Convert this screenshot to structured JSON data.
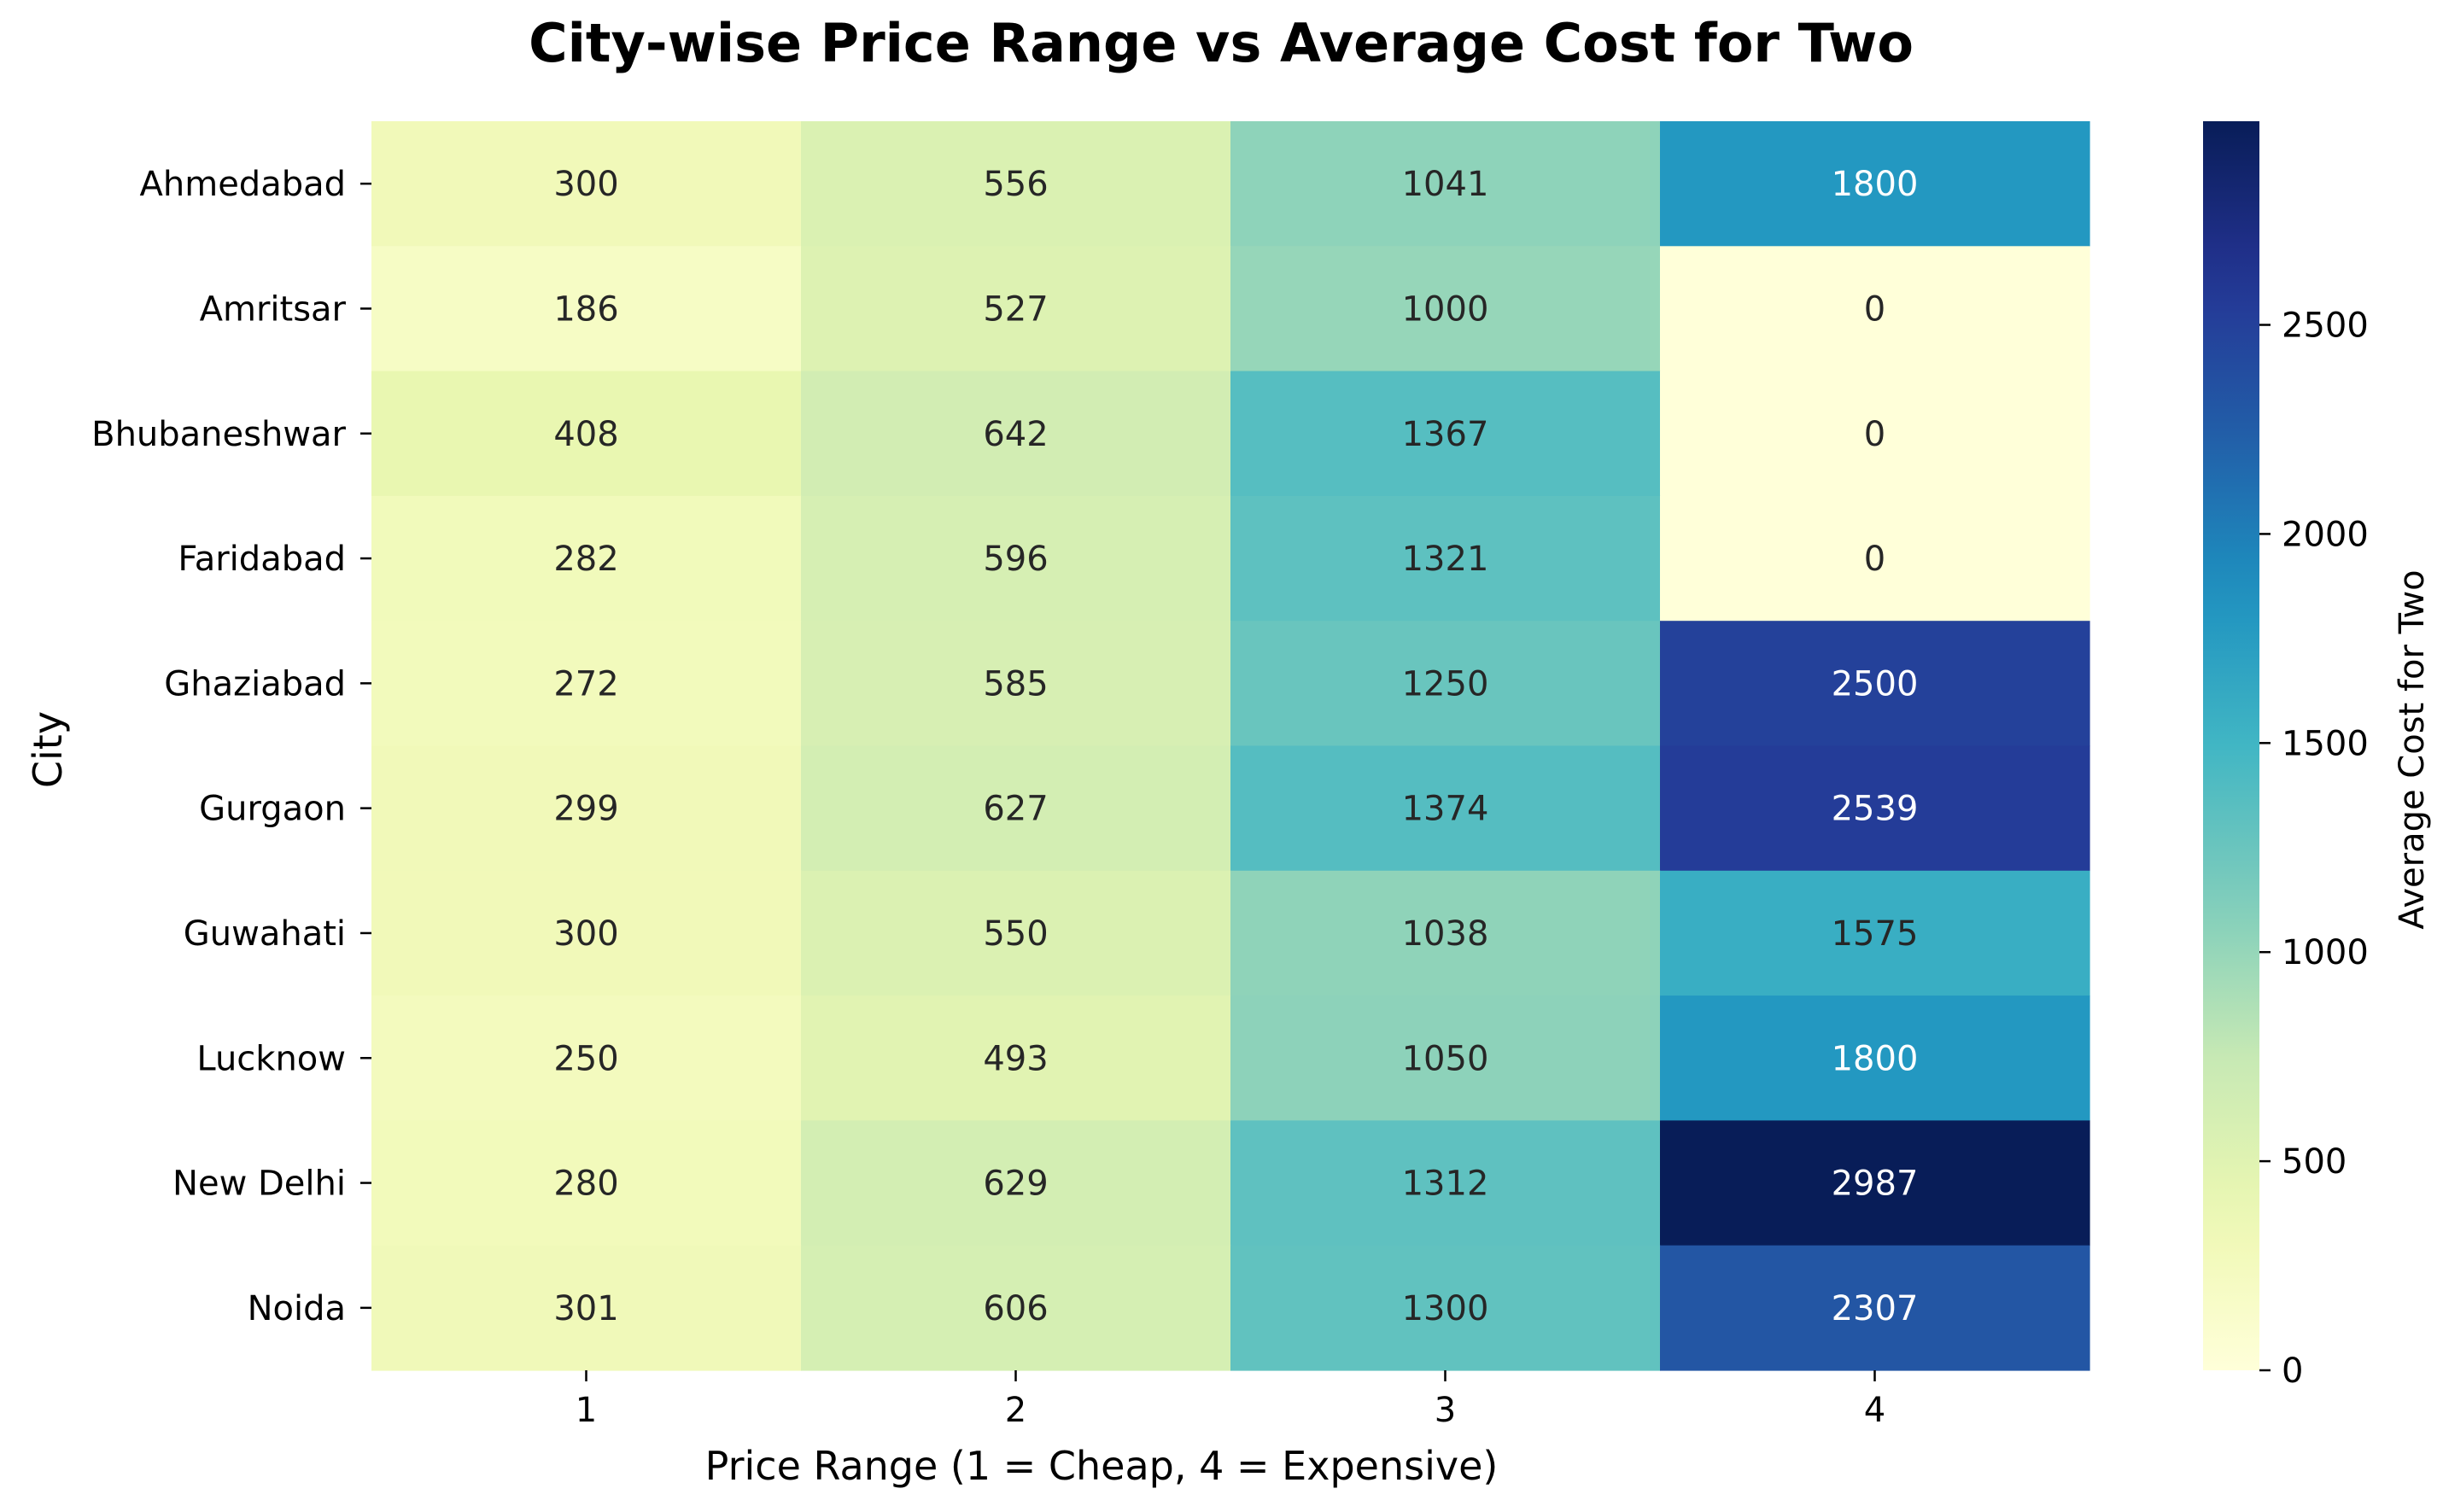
{
  "chart_data": {
    "type": "heatmap",
    "title": "City-wise Price Range vs Average Cost for Two",
    "xlabel": "Price Range (1 = Cheap, 4 = Expensive)",
    "ylabel": "City",
    "x_categories": [
      "1",
      "2",
      "3",
      "4"
    ],
    "y_categories": [
      "Ahmedabad",
      "Amritsar",
      "Bhubaneshwar",
      "Faridabad",
      "Ghaziabad",
      "Gurgaon",
      "Guwahati",
      "Lucknow",
      "New Delhi",
      "Noida"
    ],
    "values": [
      [
        300,
        556,
        1041,
        1800
      ],
      [
        186,
        527,
        1000,
        0
      ],
      [
        408,
        642,
        1367,
        0
      ],
      [
        282,
        596,
        1321,
        0
      ],
      [
        272,
        585,
        1250,
        2500
      ],
      [
        299,
        627,
        1374,
        2539
      ],
      [
        300,
        550,
        1038,
        1575
      ],
      [
        250,
        493,
        1050,
        1800
      ],
      [
        280,
        629,
        1312,
        2987
      ],
      [
        301,
        606,
        1300,
        2307
      ]
    ],
    "colorbar": {
      "label": "Average Cost for Two",
      "range": [
        0,
        2987
      ],
      "ticks": [
        0,
        500,
        1000,
        1500,
        2000,
        2500
      ],
      "colormap": "YlGnBu"
    },
    "annotations": "cell values shown",
    "grid": false,
    "legend": "colorbar-right"
  }
}
